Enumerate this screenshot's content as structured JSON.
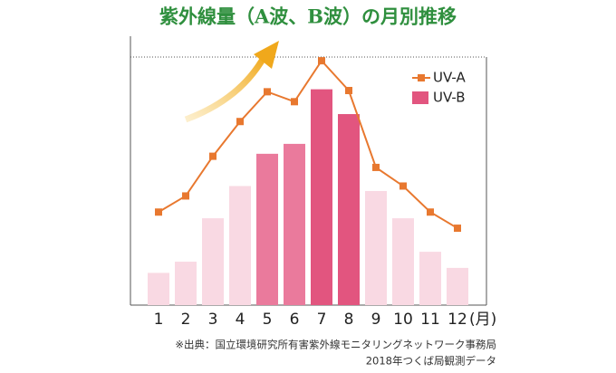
{
  "chart_data": {
    "type": "bar_line",
    "title": "紫外線量（A波、B波）の月別推移",
    "categories": [
      "1",
      "2",
      "3",
      "4",
      "5",
      "6",
      "7",
      "8",
      "9",
      "10",
      "11",
      "12"
    ],
    "x_unit": "(月)",
    "series": [
      {
        "name": "UV-B",
        "type": "bar",
        "color": "#e2557f",
        "colors": [
          "#f9d9e3",
          "#f9d9e3",
          "#f9d9e3",
          "#f9d9e3",
          "#ea7a9c",
          "#ea7a9c",
          "#e2557f",
          "#e2557f",
          "#f9d9e3",
          "#f9d9e3",
          "#f9d9e3",
          "#f9d9e3"
        ],
        "values": [
          13,
          17.5,
          35,
          48,
          61,
          65,
          87,
          77,
          46,
          35,
          21.5,
          15
        ]
      },
      {
        "name": "UV-A",
        "type": "line",
        "color": "#e8782f",
        "values": [
          37.5,
          44,
          60,
          74,
          86,
          82,
          98.5,
          86.5,
          55.5,
          48,
          37.5,
          31
        ]
      }
    ],
    "ylim": [
      0,
      100
    ],
    "source": [
      "※出典：国立環境研究所有害紫外線モニタリングネットワーク事務局",
      "2018年つくば局観測データ"
    ]
  }
}
